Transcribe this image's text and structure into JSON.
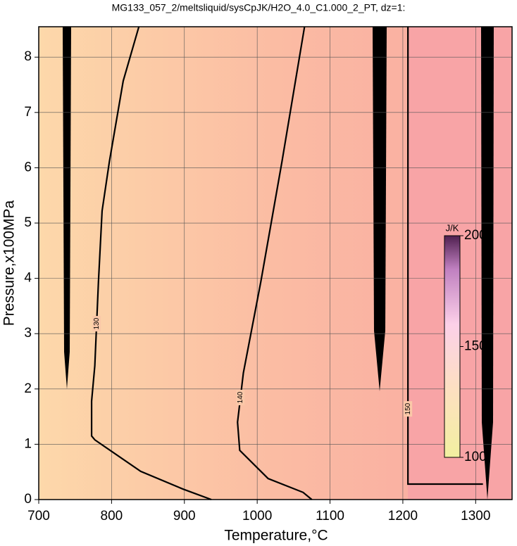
{
  "chart_data": {
    "type": "contour",
    "title": "MG133_057_2/meltsliquid/sysCpJK/H2O_4.0_C1.000_2_PT, dz=1:",
    "x_label": "Temperature,°C",
    "y_label": "Pressure,x100MPa",
    "xlim": [
      700,
      1350
    ],
    "ylim": [
      0,
      8.55
    ],
    "xticks": [
      700,
      800,
      900,
      1000,
      1100,
      1200,
      1300
    ],
    "yticks": [
      0,
      1,
      2,
      3,
      4,
      5,
      6,
      7,
      8
    ],
    "grid": true,
    "contours": [
      {
        "level": 130,
        "x": [
          837.5,
          816,
          797,
          787,
          782,
          777,
          772.6,
          772.6,
          777,
          840,
          898,
          937
        ],
        "y": [
          8.55,
          7.57,
          6.11,
          5.22,
          3.94,
          2.42,
          1.78,
          1.15,
          1.08,
          0.51,
          0.19,
          0
        ]
      },
      {
        "level": 140,
        "x": [
          1065,
          1034,
          1005,
          981,
          973,
          976,
          1015,
          1063,
          1075
        ],
        "y": [
          8.55,
          6.11,
          3.94,
          2.29,
          1.4,
          0.89,
          0.38,
          0.13,
          0
        ]
      },
      {
        "level": 150,
        "x": [
          1207,
          1207,
          1207,
          1310
        ],
        "y": [
          8.55,
          3.0,
          0.28,
          0.28
        ]
      }
    ],
    "colorbar": {
      "label": "J/K",
      "clim": [
        100,
        200
      ],
      "ticks": [
        100,
        150,
        200
      ]
    }
  }
}
